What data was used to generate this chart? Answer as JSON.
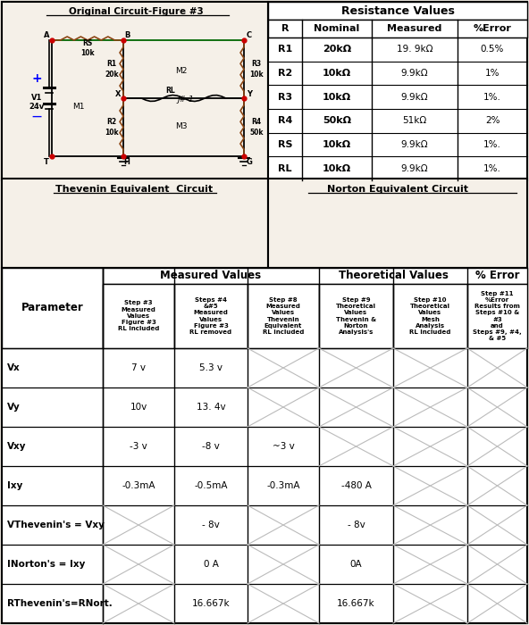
{
  "title_circuit": "Original Circuit-Figure #3",
  "title_thevenin": "Thevenin Equivalent  Circuit",
  "title_norton": "Norton Equivalent Circuit",
  "title_resistance": "Resistance Values",
  "res_headers": [
    "R",
    "Nominal",
    "Measured",
    "%Error"
  ],
  "res_rows": [
    [
      "R1",
      "20kΩ",
      "19. 9kΩ",
      "0.5%"
    ],
    [
      "R2",
      "10kΩ",
      "9.9kΩ",
      "1%"
    ],
    [
      "R3",
      "10kΩ",
      "9.9kΩ",
      "1%."
    ],
    [
      "R4",
      "50kΩ",
      "51kΩ",
      "2%"
    ],
    [
      "RS",
      "10kΩ",
      "9.9kΩ",
      "1%."
    ],
    [
      "RL",
      "10kΩ",
      "9.9kΩ",
      "1%."
    ]
  ],
  "row_labels": [
    "Vx",
    "Vy",
    "Vxy",
    "Ixy",
    "VThevenin's = Vxy",
    "INorton's = Ixy",
    "RThevenin's=RNort."
  ],
  "table_data": [
    [
      "7 v",
      "5.3 v",
      "",
      "",
      "",
      ""
    ],
    [
      "10v",
      "13. 4v",
      "",
      "",
      "",
      ""
    ],
    [
      "-3 v",
      "-8 v",
      "~3 v",
      "",
      "",
      ""
    ],
    [
      "-0.3mA",
      "-0.5mA",
      "-0.3mA",
      "-480 A",
      "",
      ""
    ],
    [
      "",
      "- 8v",
      "",
      "- 8v",
      "",
      ""
    ],
    [
      "",
      "0 A",
      "",
      "0A",
      "",
      ""
    ],
    [
      "",
      "16.667k",
      "",
      "16.667k",
      "",
      ""
    ]
  ],
  "cross_pattern": [
    [
      false,
      false,
      true,
      true,
      true,
      true
    ],
    [
      false,
      false,
      true,
      true,
      true,
      true
    ],
    [
      false,
      false,
      false,
      true,
      true,
      true
    ],
    [
      false,
      false,
      false,
      false,
      true,
      true
    ],
    [
      true,
      false,
      true,
      false,
      true,
      true
    ],
    [
      true,
      false,
      true,
      false,
      true,
      true
    ],
    [
      true,
      false,
      true,
      false,
      true,
      true
    ]
  ],
  "bg_color": "#f5f0e8",
  "node_color": "#cc0000",
  "wire_color_top": "#006600",
  "wire_color": "#000000",
  "resistor_color": "#8B4513"
}
